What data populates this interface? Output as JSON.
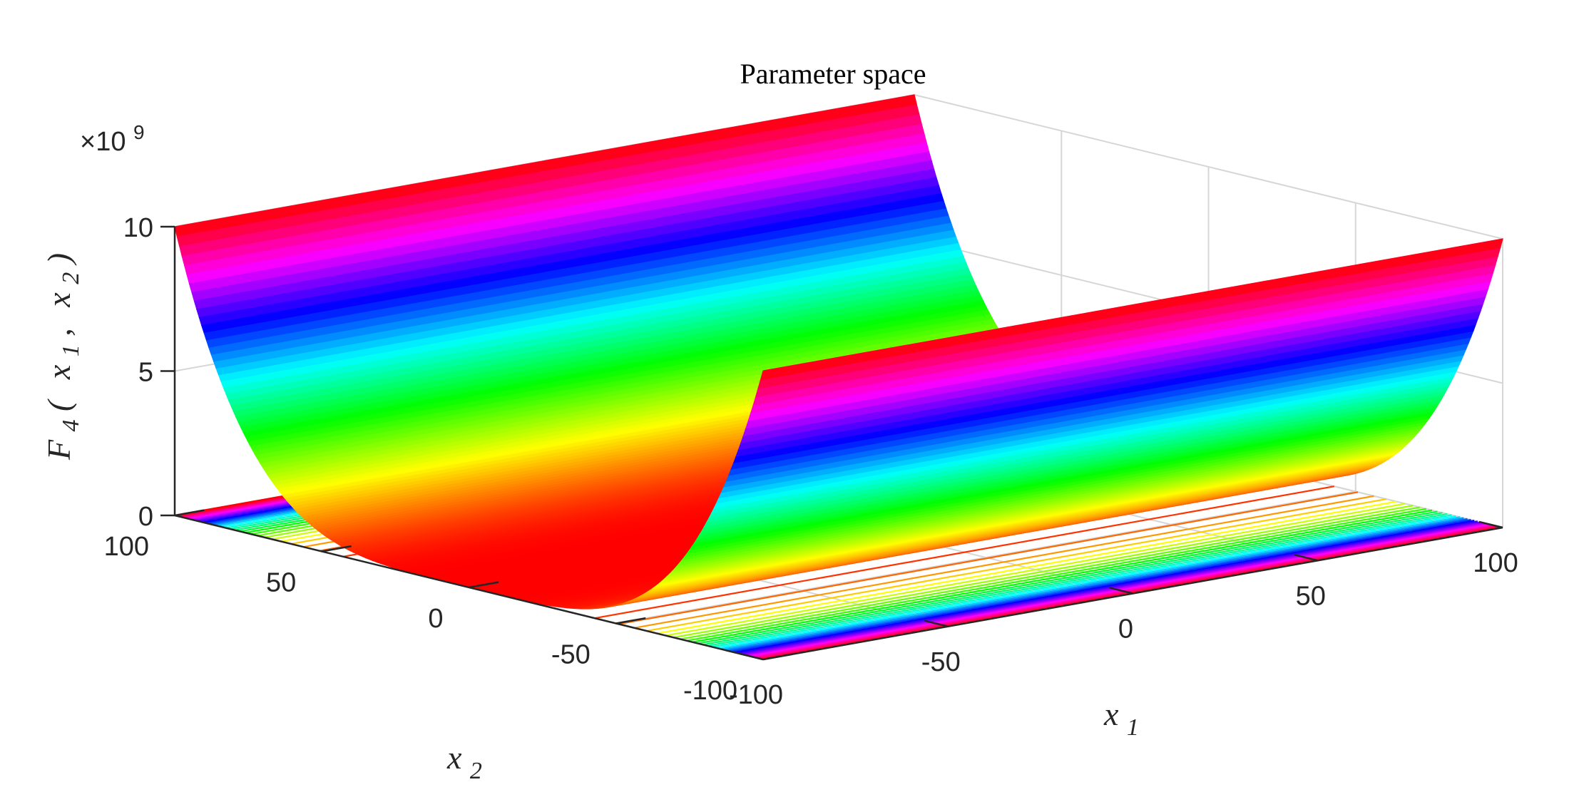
{
  "chart_data": {
    "type": "surface",
    "title": "Parameter space",
    "function": "F4(x1, x2) ∝ x2^4",
    "xlabel": {
      "base": "x",
      "sub": "1"
    },
    "ylabel": {
      "base": "x",
      "sub": "2"
    },
    "zlabel": {
      "base": "F",
      "sub": "4",
      "arg_open": "(",
      "arg1_base": "x",
      "arg1_sub": "1",
      "sep": ",",
      "arg2_base": "x",
      "arg2_sub": "2",
      "arg_close": ")"
    },
    "xlim": [
      -100,
      100
    ],
    "ylim": [
      -100,
      100
    ],
    "zlim": [
      0,
      10
    ],
    "z_exponent_label": "×10",
    "z_exponent_power": "9",
    "x_ticks": [
      -100,
      -50,
      0,
      50,
      100
    ],
    "x_tick_labels": [
      "-100",
      "-50",
      "0",
      "50",
      "100"
    ],
    "y_ticks": [
      -100,
      -50,
      0,
      50,
      100
    ],
    "y_tick_labels": [
      "-100",
      "-50",
      "0",
      "50",
      "100"
    ],
    "z_ticks": [
      0,
      5,
      10
    ],
    "z_tick_labels": [
      "0",
      "5",
      "10"
    ],
    "z_max_data": 10,
    "contour_on_floor": true,
    "grid": true,
    "colormap": "hsv",
    "colors": [
      "#ff0000",
      "#ff8000",
      "#ffff00",
      "#00ff00",
      "#00ffff",
      "#0080ff",
      "#0000ff",
      "#8000ff",
      "#ff00ff",
      "#ff0080"
    ]
  }
}
